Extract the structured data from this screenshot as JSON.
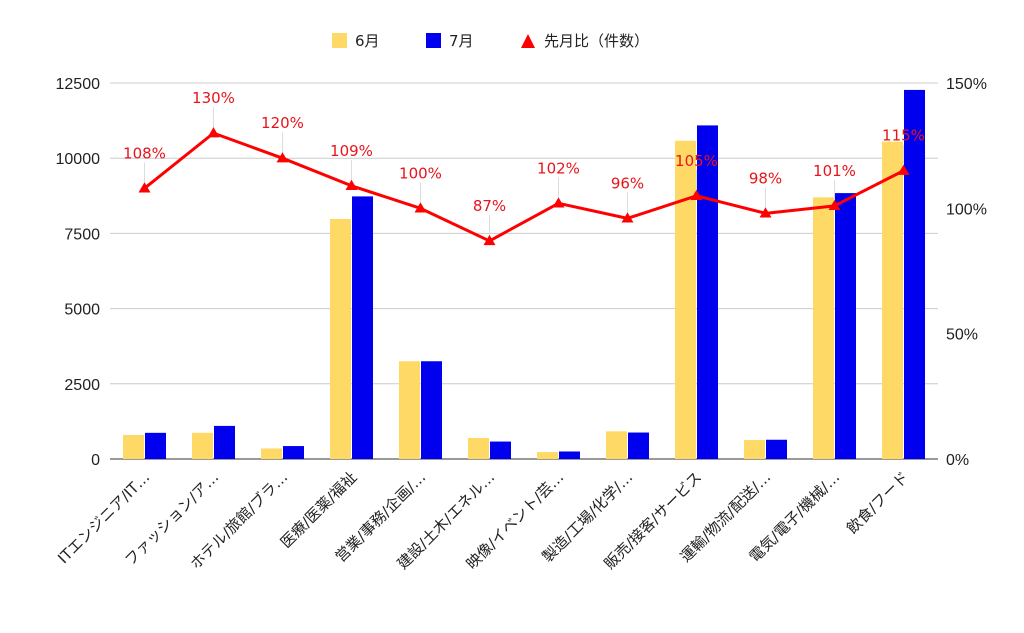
{
  "chart_data": {
    "type": "bar",
    "categories": [
      "ITエンジニア/IT…",
      "ファッション/ア…",
      "ホテル/旅館/ブラ…",
      "医療/医薬/福祉",
      "営業/事務/企画/…",
      "建設/土木/エネル…",
      "映像/イベント/芸…",
      "製造/工場/化学/…",
      "販売/接客/サービス",
      "運輸/物流/配送/…",
      "電気/電子/機械/…",
      "飲食/フード"
    ],
    "series": [
      {
        "name": "6月",
        "type": "bar",
        "axis": "left",
        "color": "#ffd966",
        "values": [
          800,
          870,
          350,
          7980,
          3250,
          700,
          230,
          920,
          10580,
          630,
          8700,
          10550
        ]
      },
      {
        "name": "7月",
        "type": "bar",
        "axis": "left",
        "color": "#0000ee",
        "values": [
          870,
          1100,
          430,
          8730,
          3250,
          580,
          250,
          880,
          11090,
          640,
          8840,
          12270
        ]
      },
      {
        "name": "先月比（件数）",
        "type": "line",
        "axis": "right",
        "color": "#ff0000",
        "values": [
          108,
          130,
          120,
          109,
          100,
          87,
          102,
          96,
          105,
          98,
          101,
          115
        ],
        "labels": [
          "108%",
          "130%",
          "120%",
          "109%",
          "100%",
          "87%",
          "102%",
          "96%",
          "105%",
          "98%",
          "101%",
          "115%"
        ]
      }
    ],
    "y_left": {
      "min": 0,
      "max": 12500,
      "ticks": [
        "0",
        "2500",
        "5000",
        "7500",
        "10000",
        "12500"
      ]
    },
    "y_right": {
      "min": 0,
      "max": 150,
      "ticks": [
        "0%",
        "50%",
        "100%",
        "150%"
      ]
    },
    "grid": true,
    "legend_position": "top-center"
  }
}
